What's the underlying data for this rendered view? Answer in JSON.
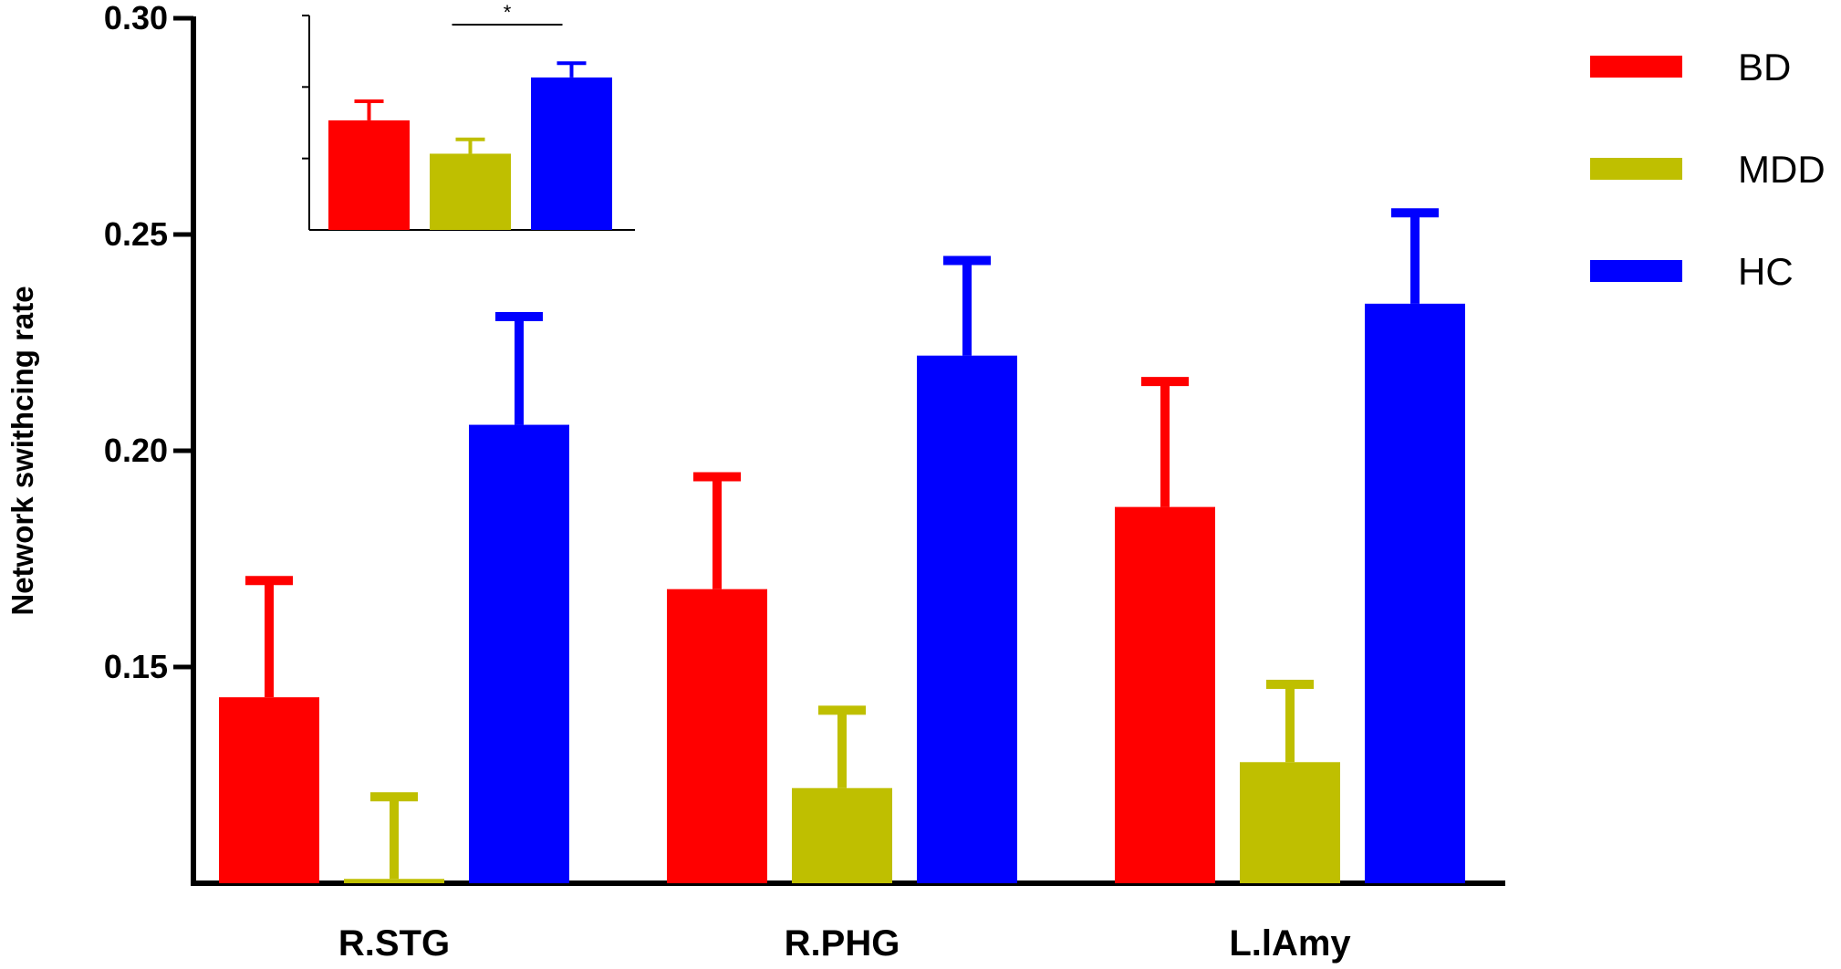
{
  "chart_data": [
    {
      "type": "bar",
      "ylabel": "Network swithcing rate",
      "ylim": [
        0.1,
        0.3
      ],
      "yticks": [
        "0.15",
        "0.20",
        "0.25",
        "0.30"
      ],
      "categories": [
        "R.STG",
        "R.PHG",
        "L.lAmy"
      ],
      "series": [
        {
          "name": "BD",
          "color": "#ff0000",
          "values": [
            0.143,
            0.168,
            0.187
          ],
          "errors": [
            0.027,
            0.026,
            0.029
          ]
        },
        {
          "name": "MDD",
          "color": "#bfbf00",
          "values": [
            0.101,
            0.122,
            0.128
          ],
          "errors": [
            0.019,
            0.018,
            0.018
          ]
        },
        {
          "name": "HC",
          "color": "#0000ff",
          "values": [
            0.206,
            0.222,
            0.234
          ],
          "errors": [
            0.025,
            0.022,
            0.021
          ]
        }
      ],
      "legend": {
        "position": "top-right",
        "items": [
          {
            "label": "BD",
            "color": "#ff0000"
          },
          {
            "label": "MDD",
            "color": "#bfbf00"
          },
          {
            "label": "HC",
            "color": "#0000ff"
          }
        ]
      },
      "grid": false
    },
    {
      "type": "bar",
      "inset": true,
      "categories": [
        "BD",
        "MDD",
        "HC"
      ],
      "values": [
        0.278,
        0.271,
        0.287
      ],
      "errors": [
        0.004,
        0.003,
        0.003
      ],
      "colors": [
        "#ff0000",
        "#bfbf00",
        "#0000ff"
      ],
      "ylim": [
        0.255,
        0.3
      ],
      "yticks_unlabeled": [
        0.27,
        0.285,
        0.3
      ],
      "significance": {
        "between": [
          "MDD",
          "HC"
        ],
        "label": "*"
      }
    }
  ]
}
